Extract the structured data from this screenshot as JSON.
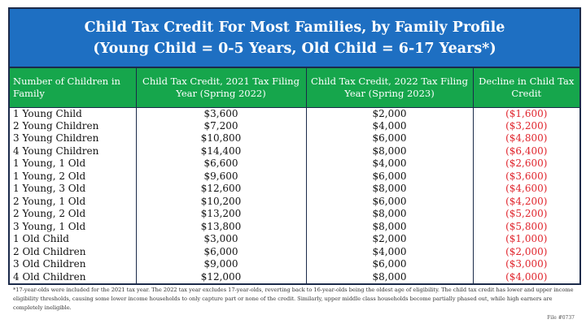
{
  "title": {
    "line1": "Child Tax Credit For Most Families, by Family Profile",
    "line2": "(Young Child = 0-5 Years, Old Child = 6-17 Years*)"
  },
  "headers": [
    "Number of Children in Family",
    "Child Tax Credit, 2021 Tax Filing Year (Spring 2022)",
    "Child Tax Credit, 2022 Tax Filing Year (Spring 2023)",
    "Decline in Child Tax Credit"
  ],
  "rows": [
    [
      "1 Young Child",
      "$3,600",
      "$2,000",
      "($1,600)"
    ],
    [
      "2 Young Children",
      "$7,200",
      "$4,000",
      "($3,200)"
    ],
    [
      "3 Young Children",
      "$10,800",
      "$6,000",
      "($4,800)"
    ],
    [
      "4 Young Children",
      "$14,400",
      "$8,000",
      "($6,400)"
    ],
    [
      "1 Young, 1 Old",
      "$6,600",
      "$4,000",
      "($2,600)"
    ],
    [
      "1 Young, 2 Old",
      "$9,600",
      "$6,000",
      "($3,600)"
    ],
    [
      "1 Young, 3 Old",
      "$12,600",
      "$8,000",
      "($4,600)"
    ],
    [
      "2 Young, 1 Old",
      "$10,200",
      "$6,000",
      "($4,200)"
    ],
    [
      "2 Young, 2 Old",
      "$13,200",
      "$8,000",
      "($5,200)"
    ],
    [
      "3 Young, 1 Old",
      "$13,800",
      "$8,000",
      "($5,800)"
    ],
    [
      "1 Old Child",
      "$3,000",
      "$2,000",
      "($1,000)"
    ],
    [
      "2 Old Children",
      "$6,000",
      "$4,000",
      "($2,000)"
    ],
    [
      "3 Old Children",
      "$9,000",
      "$6,000",
      "($3,000)"
    ],
    [
      "4 Old Children",
      "$12,000",
      "$8,000",
      "($4,000)"
    ]
  ],
  "footnote": "*17-year-olds were included for the 2021 tax year. The 2022 tax year excludes 17-year-olds, reverting back to 16-year-olds being the oldest age of eligibility. The child tax credit has lower and upper income eligibility thresholds, causing some lower income households to only capture part or none of the credit. Similarly, upper middle class households become partially phased out, while high earners are completely ineligible.",
  "file_label": "File #0737",
  "colors": {
    "title_bg": "#1e6fc2",
    "header_bg": "#16a64c",
    "decline_text": "#e0242c"
  }
}
